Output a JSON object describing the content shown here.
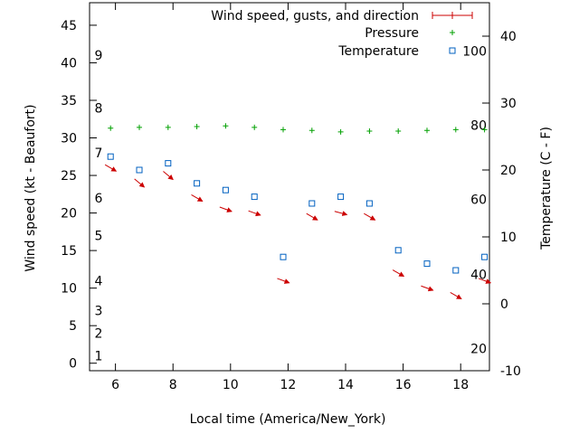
{
  "chart_data": {
    "type": "scatter",
    "title": "",
    "xlabel": "Local time (America/New_York)",
    "ylabel": "Wind speed (kt - Beaufort)",
    "y2label": "Temperature (C - F)",
    "xlim": [
      5.1,
      19.0
    ],
    "ylim": [
      -1.0,
      48.0
    ],
    "y2lim": [
      -10.0,
      45.0
    ],
    "xticks": [
      6,
      8,
      10,
      12,
      14,
      16,
      18
    ],
    "yticks": [
      0,
      5,
      10,
      15,
      20,
      25,
      30,
      35,
      40,
      45
    ],
    "y2ticks": [
      -10,
      0,
      10,
      20,
      30,
      40
    ],
    "beaufort_labels": [
      {
        "label": "1",
        "kt": 1
      },
      {
        "label": "2",
        "kt": 4
      },
      {
        "label": "3",
        "kt": 7
      },
      {
        "label": "4",
        "kt": 11
      },
      {
        "label": "5",
        "kt": 17
      },
      {
        "label": "6",
        "kt": 22
      },
      {
        "label": "7",
        "kt": 28
      },
      {
        "label": "8",
        "kt": 34
      },
      {
        "label": "9",
        "kt": 41
      }
    ],
    "fahrenheit_labels": [
      {
        "label": "20",
        "c": -6.7
      },
      {
        "label": "40",
        "c": 4.4
      },
      {
        "label": "60",
        "c": 15.6
      },
      {
        "label": "80",
        "c": 26.7
      },
      {
        "label": "100",
        "c": 37.8
      }
    ],
    "grid": false,
    "legend_position": "top-right",
    "series": [
      {
        "name": "Wind speed, gusts, and direction",
        "color": "#cc0000",
        "marker": "arrow",
        "x": [
          5.83,
          6.83,
          7.83,
          8.83,
          9.83,
          10.83,
          11.83,
          12.83,
          13.83,
          14.83,
          15.83,
          16.83,
          17.83,
          18.83
        ],
        "y": [
          26,
          24,
          25,
          22,
          20.5,
          20,
          11,
          19.5,
          20,
          19.5,
          12,
          10,
          9,
          11
        ],
        "direction_deg": [
          300,
          310,
          310,
          300,
          290,
          290,
          290,
          300,
          285,
          300,
          300,
          290,
          300,
          290
        ]
      },
      {
        "name": "Pressure",
        "color": "#00a000",
        "marker": "plus",
        "x": [
          5.83,
          6.83,
          7.83,
          8.83,
          9.83,
          10.83,
          11.83,
          12.83,
          13.83,
          14.83,
          15.83,
          16.83,
          17.83,
          18.83
        ],
        "y": [
          31.3,
          31.4,
          31.4,
          31.5,
          31.6,
          31.4,
          31.1,
          31.0,
          30.8,
          30.9,
          30.9,
          31.0,
          31.1,
          31.1
        ]
      },
      {
        "name": "Temperature",
        "color": "#0060c0",
        "marker": "square",
        "axis": "y2",
        "x": [
          5.83,
          6.83,
          7.83,
          8.83,
          9.83,
          10.83,
          11.83,
          12.83,
          13.83,
          14.83,
          15.83,
          16.83,
          17.83,
          18.83
        ],
        "y": [
          22.0,
          20.0,
          21.0,
          18.0,
          17.0,
          16.0,
          7.0,
          15.0,
          16.0,
          15.0,
          8.0,
          6.0,
          5.0,
          7.0
        ]
      }
    ]
  }
}
